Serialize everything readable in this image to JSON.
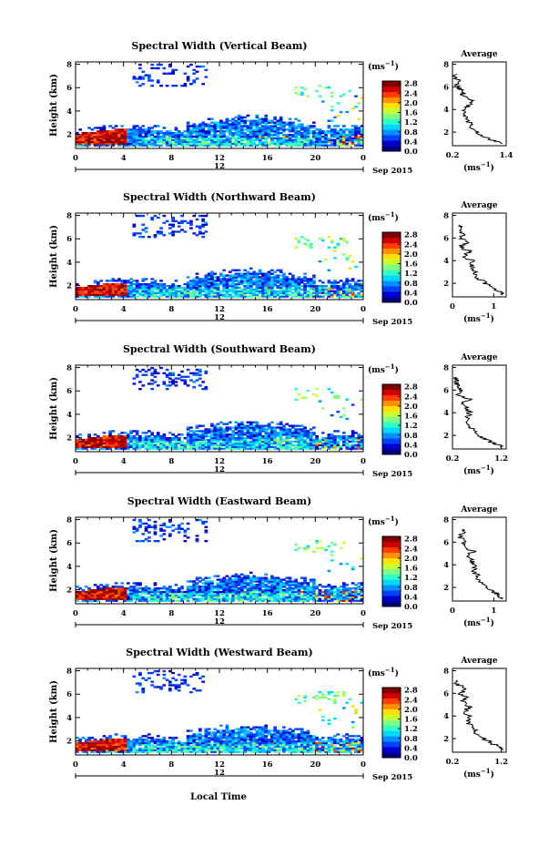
{
  "figure": {
    "xlabel": "Local Time",
    "ylabel": "Height (km)",
    "colorbar_unit": "(ms",
    "colorbar_unit_exp": "−1",
    "colorbar_unit_close": ")",
    "date_label": "Sep 2015",
    "day_label": "12",
    "avg_title": "Average",
    "avg_xlabel": "(ms",
    "avg_xlabel_exp": "−1",
    "avg_xlabel_close": ")",
    "colormap": [
      "#000080",
      "#0000d0",
      "#0040ff",
      "#0090ff",
      "#00d8ff",
      "#30ffc8",
      "#80ff80",
      "#c8ff30",
      "#ffe000",
      "#ff9000",
      "#ff4000",
      "#d00000",
      "#800000"
    ]
  },
  "chart_data": [
    {
      "type": "heatmap",
      "title": "Spectral Width (Vertical Beam)",
      "x_ticks": [
        "0",
        "4",
        "8",
        "12",
        "16",
        "20",
        "0"
      ],
      "x_range": [
        0,
        24
      ],
      "y_ticks": [
        "2",
        "4",
        "6",
        "8"
      ],
      "y_range": [
        0.8,
        8.2
      ],
      "colorbar_ticks": [
        "0.0",
        "0.4",
        "0.8",
        "1.2",
        "1.6",
        "2.0",
        "2.4",
        "2.8"
      ],
      "colorbar_range": [
        0.0,
        2.9
      ],
      "avg_x_ticks": [
        "0.2",
        "1.4"
      ],
      "avg_x_range": [
        0.2,
        1.4
      ],
      "avg_y_ticks": [
        "2",
        "4",
        "6",
        "8"
      ],
      "avg_profile": {
        "height": [
          1.0,
          1.3,
          1.6,
          2.0,
          2.5,
          3.0,
          3.5,
          4.0,
          4.4,
          4.8,
          5.2,
          5.6,
          6.0,
          6.4,
          6.8,
          7.2
        ],
        "value": [
          1.35,
          1.1,
          0.9,
          0.75,
          0.6,
          0.55,
          0.45,
          0.5,
          0.55,
          0.65,
          0.4,
          0.45,
          0.3,
          0.35,
          0.3,
          0.25
        ]
      }
    },
    {
      "type": "heatmap",
      "title": "Spectral Width (Northward Beam)",
      "x_ticks": [
        "0",
        "4",
        "8",
        "12",
        "16",
        "20",
        "0"
      ],
      "x_range": [
        0,
        24
      ],
      "y_ticks": [
        "2",
        "4",
        "6",
        "8"
      ],
      "y_range": [
        0.8,
        8.2
      ],
      "colorbar_ticks": [
        "0.0",
        "0.4",
        "0.8",
        "1.2",
        "1.6",
        "2.0",
        "2.4",
        "2.8"
      ],
      "colorbar_range": [
        0.0,
        2.9
      ],
      "avg_x_ticks": [
        "0",
        "1"
      ],
      "avg_x_range": [
        0,
        1.3
      ],
      "avg_y_ticks": [
        "2",
        "4",
        "6",
        "8"
      ],
      "avg_profile": {
        "height": [
          1.0,
          1.3,
          1.6,
          2.0,
          2.5,
          3.0,
          3.5,
          4.0,
          4.4,
          4.8,
          5.2,
          5.6,
          6.0,
          6.4,
          6.8,
          7.2
        ],
        "value": [
          1.25,
          1.1,
          0.95,
          0.8,
          0.6,
          0.55,
          0.45,
          0.5,
          0.25,
          0.45,
          0.15,
          0.35,
          0.2,
          0.25,
          0.2,
          0.15
        ]
      }
    },
    {
      "type": "heatmap",
      "title": "Spectral Width (Southward Beam)",
      "x_ticks": [
        "0",
        "4",
        "8",
        "12",
        "16",
        "20",
        "0"
      ],
      "x_range": [
        0,
        24
      ],
      "y_ticks": [
        "2",
        "4",
        "6",
        "8"
      ],
      "y_range": [
        0.8,
        8.2
      ],
      "colorbar_ticks": [
        "0.0",
        "0.4",
        "0.8",
        "1.2",
        "1.6",
        "2.0",
        "2.4",
        "2.8"
      ],
      "colorbar_range": [
        0.0,
        2.9
      ],
      "avg_x_ticks": [
        "0.2",
        "1.2"
      ],
      "avg_x_range": [
        0.2,
        1.3
      ],
      "avg_y_ticks": [
        "2",
        "4",
        "6",
        "8"
      ],
      "avg_profile": {
        "height": [
          1.0,
          1.3,
          1.6,
          2.0,
          2.5,
          3.0,
          3.5,
          4.0,
          4.4,
          4.8,
          5.2,
          5.6,
          6.0,
          6.4,
          6.8,
          7.2
        ],
        "value": [
          1.2,
          1.05,
          0.9,
          0.75,
          0.6,
          0.55,
          0.5,
          0.55,
          0.5,
          0.35,
          0.55,
          0.3,
          0.4,
          0.3,
          0.3,
          0.25
        ]
      }
    },
    {
      "type": "heatmap",
      "title": "Spectral Width (Eastward Beam)",
      "x_ticks": [
        "0",
        "4",
        "8",
        "12",
        "16",
        "20",
        "0"
      ],
      "x_range": [
        0,
        24
      ],
      "y_ticks": [
        "2",
        "4",
        "6",
        "8"
      ],
      "y_range": [
        0.8,
        8.2
      ],
      "colorbar_ticks": [
        "0.0",
        "0.4",
        "0.8",
        "1.2",
        "1.6",
        "2.0",
        "2.4",
        "2.8"
      ],
      "colorbar_range": [
        0.0,
        2.9
      ],
      "avg_x_ticks": [
        "0",
        "1"
      ],
      "avg_x_range": [
        0,
        1.3
      ],
      "avg_y_ticks": [
        "2",
        "4",
        "6",
        "8"
      ],
      "avg_profile": {
        "height": [
          1.0,
          1.3,
          1.6,
          2.0,
          2.5,
          3.0,
          3.5,
          4.0,
          4.4,
          4.8,
          5.2,
          5.6,
          6.0,
          6.4,
          6.8,
          7.2
        ],
        "value": [
          1.2,
          1.15,
          1.0,
          0.8,
          0.65,
          0.6,
          0.5,
          0.55,
          0.45,
          0.4,
          0.5,
          0.25,
          0.3,
          0.2,
          0.25,
          0.2
        ]
      }
    },
    {
      "type": "heatmap",
      "title": "Spectral Width (Westward Beam)",
      "x_ticks": [
        "0",
        "4",
        "8",
        "12",
        "16",
        "20",
        "0"
      ],
      "x_range": [
        0,
        24
      ],
      "y_ticks": [
        "2",
        "4",
        "6",
        "8"
      ],
      "y_range": [
        0.8,
        8.2
      ],
      "colorbar_ticks": [
        "0.0",
        "0.4",
        "0.8",
        "1.2",
        "1.6",
        "2.0",
        "2.4",
        "2.8"
      ],
      "colorbar_range": [
        0.0,
        2.9
      ],
      "avg_x_ticks": [
        "0.2",
        "1.2"
      ],
      "avg_x_range": [
        0.2,
        1.3
      ],
      "avg_y_ticks": [
        "2",
        "4",
        "6",
        "8"
      ],
      "avg_profile": {
        "height": [
          1.0,
          1.3,
          1.6,
          2.0,
          2.5,
          3.0,
          3.5,
          4.0,
          4.4,
          4.8,
          5.2,
          5.6,
          6.0,
          6.4,
          6.8,
          7.2
        ],
        "value": [
          1.25,
          1.15,
          1.0,
          0.85,
          0.7,
          0.6,
          0.5,
          0.55,
          0.45,
          0.55,
          0.4,
          0.5,
          0.35,
          0.5,
          0.3,
          0.25
        ]
      }
    }
  ]
}
